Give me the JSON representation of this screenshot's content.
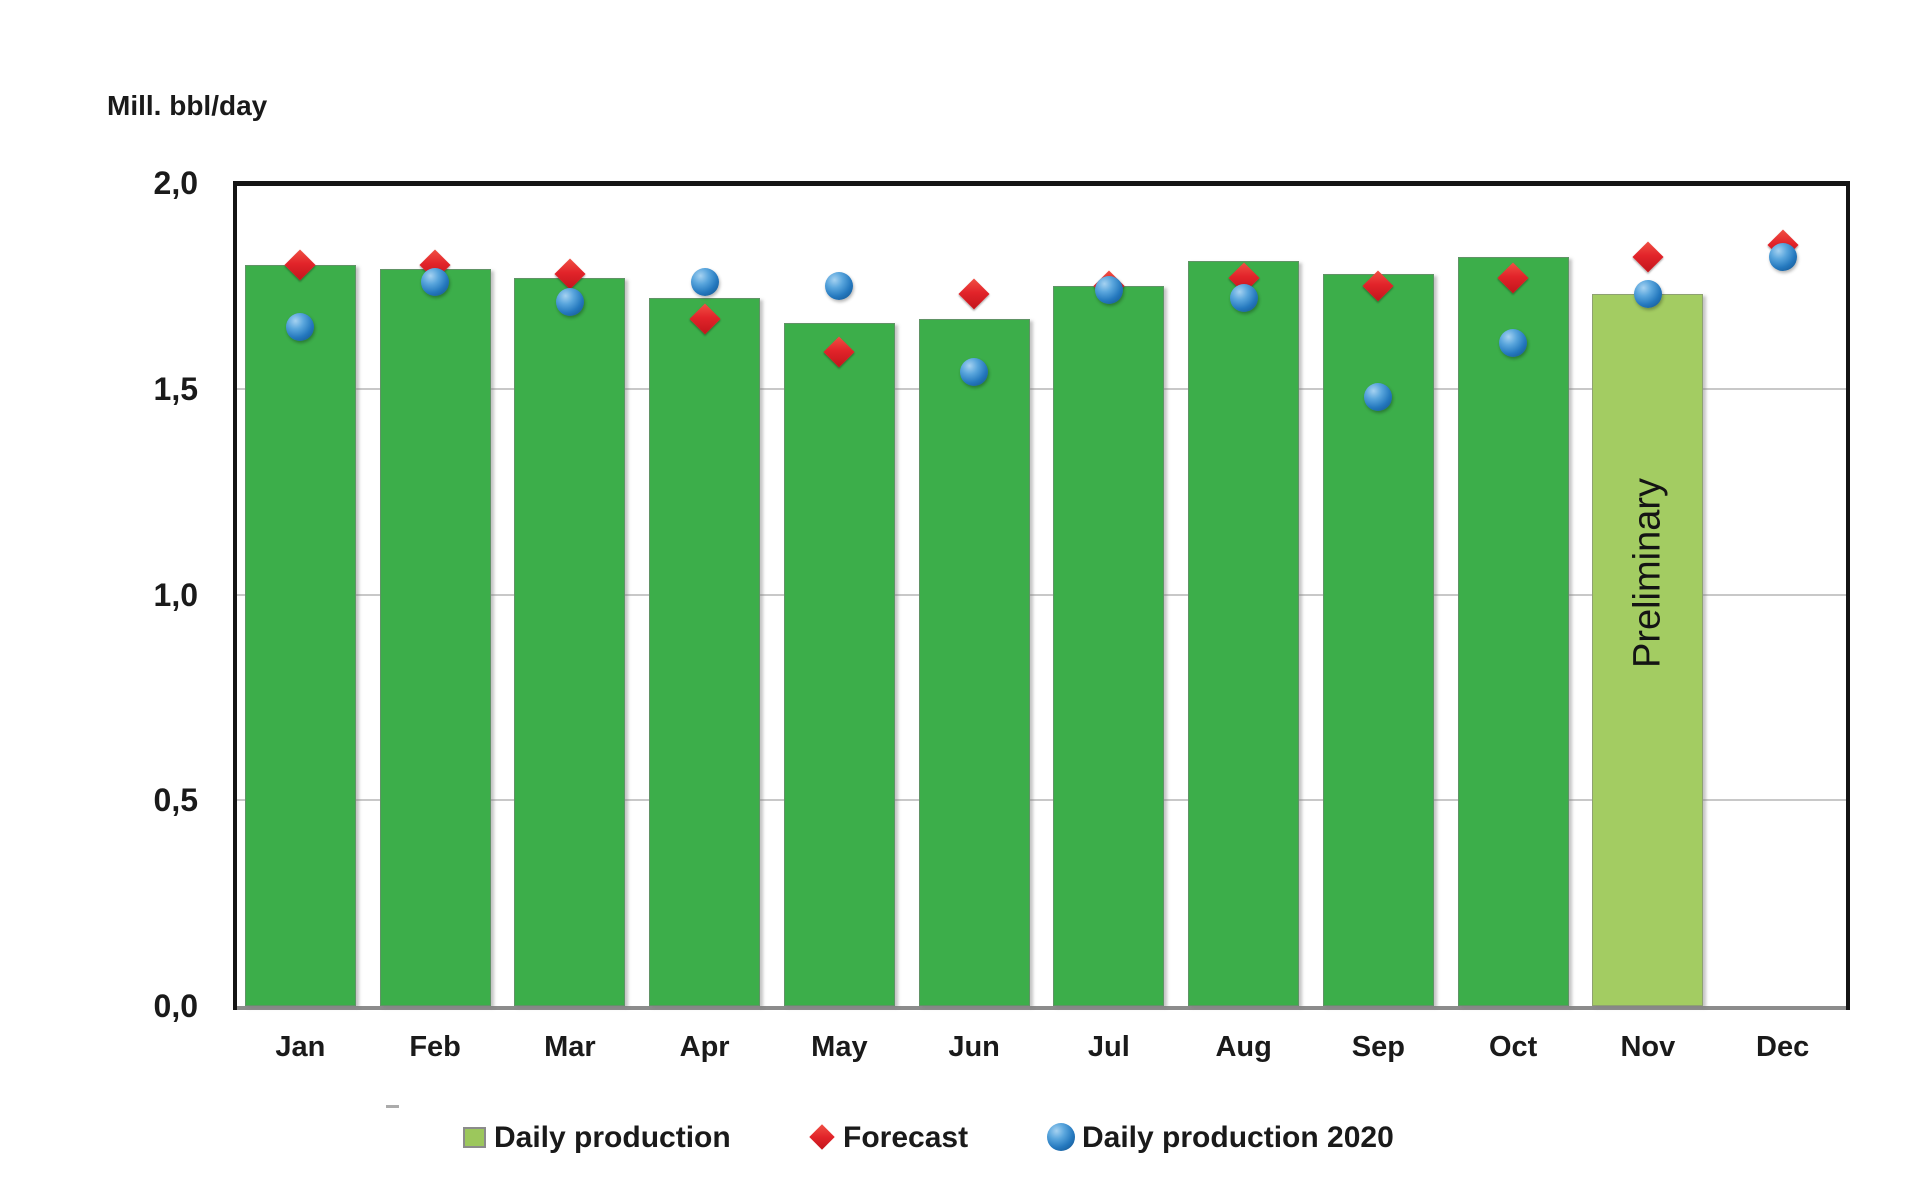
{
  "title": "Mill. bbl/day",
  "legend": {
    "items": [
      {
        "label": "Daily production",
        "marker": "square"
      },
      {
        "label": "Forecast",
        "marker": "diamond"
      },
      {
        "label": "Daily production 2020",
        "marker": "circle"
      }
    ]
  },
  "chart_data": {
    "type": "bar",
    "categories": [
      "Jan",
      "Feb",
      "Mar",
      "Apr",
      "May",
      "Jun",
      "Jul",
      "Aug",
      "Sep",
      "Oct",
      "Nov",
      "Dec"
    ],
    "series": [
      {
        "name": "Daily production",
        "type": "bar",
        "values": [
          1.8,
          1.79,
          1.77,
          1.72,
          1.66,
          1.67,
          1.75,
          1.81,
          1.78,
          1.82,
          1.73,
          null
        ]
      },
      {
        "name": "Forecast",
        "type": "scatter",
        "marker": "diamond",
        "values": [
          1.8,
          1.8,
          1.78,
          1.67,
          1.59,
          1.73,
          1.75,
          1.77,
          1.75,
          1.77,
          1.82,
          1.85
        ]
      },
      {
        "name": "Daily production 2020",
        "type": "scatter",
        "marker": "circle",
        "values": [
          1.65,
          1.76,
          1.71,
          1.76,
          1.75,
          1.54,
          1.74,
          1.72,
          1.48,
          1.61,
          1.73,
          1.82
        ]
      }
    ],
    "title": "",
    "xlabel": "",
    "ylabel": "Mill. bbl/day",
    "ylim": [
      0,
      2
    ],
    "yticks": [
      {
        "v": 2.0,
        "label": "2,0"
      },
      {
        "v": 1.5,
        "label": "1,5"
      },
      {
        "v": 1.0,
        "label": "1,0"
      },
      {
        "v": 0.5,
        "label": "0,5"
      },
      {
        "v": 0.0,
        "label": "0,0"
      }
    ],
    "gridlines": [
      1.5,
      1.0,
      0.5
    ],
    "legend_position": "bottom",
    "annotations": [
      {
        "text": "Preliminary",
        "month": "Nov",
        "rotation": -90
      }
    ],
    "colors": {
      "bar": "#3CAE4A",
      "bar_preliminary": "#A3CC62",
      "legend_bar_swatch": "#9CC75C",
      "forecast_red": "#E2242A",
      "production_2020_blue": "#2478BE",
      "gridline": "#C8C8C8",
      "axis_frame": "#141414",
      "axis_bottom_gray": "#8C8C8C"
    }
  }
}
